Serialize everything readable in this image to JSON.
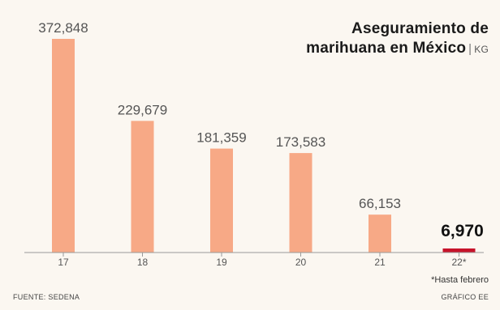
{
  "chart_data": {
    "type": "bar",
    "title": "Aseguramiento de marihuana en México",
    "title_lines": [
      "Aseguramiento de",
      "marihuana en México"
    ],
    "unit": "KG",
    "categories": [
      "17",
      "18",
      "19",
      "20",
      "21",
      "22*"
    ],
    "values": [
      372848,
      229679,
      181359,
      173583,
      66153,
      6970
    ],
    "value_labels": [
      "372,848",
      "229,679",
      "181,359",
      "173,583",
      "66,153",
      "6,970"
    ],
    "highlight_index": 5,
    "ylim": [
      0,
      372848
    ],
    "grid": false,
    "legend": "none",
    "footnote": "*Hasta febrero",
    "source": "FUENTE: SEDENA",
    "credit": "GRÁFICO EE",
    "colors": {
      "bar": "#f7a986",
      "highlight": "#c7132a",
      "axis": "#9a9a9a",
      "label": "#555555",
      "highlight_label": "#111111"
    }
  }
}
